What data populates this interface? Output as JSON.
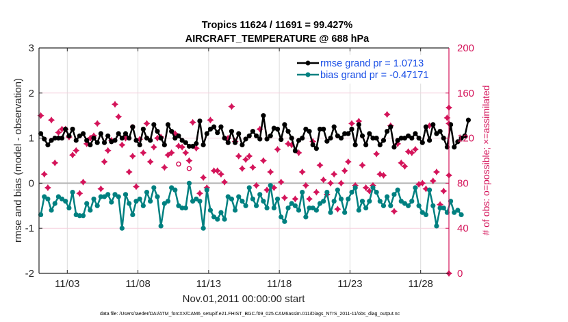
{
  "chart_data": {
    "type": "line",
    "title": [
      "Tropics 11624 / 11691 = 99.427%",
      "AIRCRAFT_TEMPERATURE @ 688 hPa"
    ],
    "xlabel": "Nov.01,2011 00:00:00 start",
    "ylabel": "rmse and bias (model - observation)",
    "ylabel_right": "# of obs: o=possible; ×=assimilated",
    "footnote": "data file: /Users/raeder/DAI/ATM_forcXX/CAM6_setup/f.e21.FHIST_BGC.f09_025.CAM6assim.011/Diags_NTrS_2011-11/obs_diag_output.nc",
    "xlim_days": [
      1,
      30
    ],
    "ylim": [
      -2,
      3
    ],
    "ylim_right": [
      0,
      200
    ],
    "x_ticks": [
      {
        "day": 3,
        "label": "11/03"
      },
      {
        "day": 8,
        "label": "11/08"
      },
      {
        "day": 13,
        "label": "11/13"
      },
      {
        "day": 18,
        "label": "11/18"
      },
      {
        "day": 23,
        "label": "11/23"
      },
      {
        "day": 28,
        "label": "11/28"
      }
    ],
    "y_ticks": [
      -2,
      -1,
      0,
      1,
      2,
      3
    ],
    "y_ticks_right": [
      0,
      40,
      80,
      120,
      160,
      200
    ],
    "grid": "vertical at x ticks; horizontal pink at left y ticks",
    "legend": {
      "placement": "top-right",
      "entries": [
        "rmse grand pr = 1.0713",
        "bias grand pr = -0.47171"
      ]
    },
    "colors": {
      "rmse": "#000000",
      "bias": "#008080",
      "obs": "#d4145a",
      "legend_text": "#1a4fe6",
      "zero_line": "#b4b4b4"
    },
    "x_start_day": 1.125,
    "x_step_days": 0.25,
    "series": [
      {
        "name": "rmse",
        "axis": "left",
        "values": [
          1.1,
          0.98,
          0.85,
          0.95,
          1.0,
          1.0,
          1.0,
          1.2,
          1.05,
          1.2,
          0.95,
          1.05,
          1.1,
          0.95,
          0.85,
          1.0,
          0.9,
          1.1,
          0.9,
          1.05,
          0.92,
          0.95,
          1.1,
          1.0,
          1.1,
          1.0,
          1.25,
          0.95,
          0.85,
          1.2,
          1.0,
          0.95,
          1.3,
          1.15,
          1.0,
          0.85,
          1.3,
          1.15,
          1.0,
          1.05,
          0.95,
          0.9,
          0.82,
          0.82,
          0.88,
          1.38,
          0.85,
          1.1,
          1.2,
          1.25,
          1.12,
          1.25,
          1.0,
          0.9,
          1.15,
          0.9,
          1.1,
          0.85,
          0.98,
          1.05,
          1.15,
          1.05,
          0.98,
          1.5,
          0.98,
          1.05,
          1.22,
          1.2,
          0.97,
          1.3,
          1.15,
          1.0,
          0.72,
          0.95,
          1.0,
          1.2,
          1.15,
          0.85,
          0.77,
          1.2,
          1.2,
          0.93,
          1.0,
          1.25,
          1.05,
          1.0,
          1.1,
          1.1,
          1.2,
          0.85,
          1.3,
          1.05,
          0.85,
          1.1,
          1.0,
          1.0,
          0.85,
          0.95,
          1.15,
          1.25,
          0.8,
          0.95,
          1.0,
          1.0,
          1.05,
          1.0,
          1.1,
          1.0,
          0.9,
          1.25,
          0.95,
          1.3,
          1.1,
          1.15,
          1.0,
          0.8,
          1.3,
          0.8,
          0.92,
          1.0,
          1.05,
          1.4
        ]
      },
      {
        "name": "bias",
        "axis": "left",
        "values": [
          -0.7,
          -0.3,
          -0.35,
          -0.6,
          -0.45,
          -0.3,
          -0.35,
          -0.4,
          -0.55,
          -0.2,
          -0.7,
          -0.72,
          -0.72,
          -0.45,
          -0.6,
          -0.35,
          -0.5,
          -0.3,
          -0.3,
          -0.25,
          -0.42,
          -0.25,
          -0.3,
          -1.0,
          -0.25,
          -0.45,
          -0.7,
          -0.4,
          -0.35,
          -0.5,
          -0.2,
          -0.4,
          -0.1,
          -0.3,
          -0.95,
          -0.45,
          -0.4,
          -0.1,
          -0.15,
          -0.5,
          -0.55,
          -0.55,
          0.0,
          -0.4,
          -0.35,
          -0.4,
          -1.0,
          -0.15,
          -0.6,
          -0.75,
          -0.8,
          -0.65,
          -0.8,
          -0.3,
          -0.35,
          -0.6,
          -0.3,
          -0.4,
          -0.5,
          -0.1,
          -0.35,
          -0.5,
          -0.25,
          -0.4,
          -0.55,
          -0.05,
          -0.55,
          -0.35,
          -0.75,
          -0.85,
          -0.55,
          -0.45,
          -0.5,
          -0.6,
          -0.2,
          -0.75,
          -0.55,
          -0.55,
          -0.6,
          -0.45,
          -0.4,
          -0.2,
          -0.65,
          -0.4,
          -0.15,
          -0.35,
          -0.65,
          -0.35,
          -0.2,
          -0.1,
          -0.6,
          -0.4,
          -0.55,
          -0.4,
          -0.1,
          -0.2,
          -0.4,
          -0.5,
          -0.3,
          -0.5,
          -0.25,
          -0.15,
          -0.4,
          -0.45,
          -0.5,
          -0.4,
          -0.1,
          -0.5,
          -0.65,
          -0.7,
          -0.15,
          -0.5,
          -0.95,
          -0.55,
          -0.55,
          -0.65,
          -0.4,
          -0.65,
          -0.6,
          -0.7
        ]
      },
      {
        "name": "obs_assimilated",
        "axis": "right",
        "marker": "star",
        "values": [
          140,
          88,
          76,
          136,
          98,
          125,
          128,
          128,
          121,
          105,
          109,
          71,
          81,
          115,
          120,
          122,
          133,
          75,
          99,
          109,
          118,
          150,
          139,
          114,
          120,
          90,
          104,
          77,
          119,
          107,
          133,
          99,
          112,
          120,
          121,
          94,
          105,
          107,
          124,
          113,
          112,
          107,
          100,
          134,
          111,
          71,
          85,
          76,
          136,
          91,
          91,
          88,
          81,
          120,
          148,
          117,
          104,
          93,
          101,
          104,
          94,
          78,
          128,
          100,
          74,
          90,
          76,
          110,
          81,
          67,
          115,
          114,
          66,
          107,
          90,
          78,
          66,
          117,
          72,
          96,
          83,
          70,
          80,
          88,
          57,
          80,
          91,
          99,
          133,
          78,
          135,
          96,
          76,
          73,
          78,
          106,
          88,
          87,
          141,
          131,
          55,
          115,
          98,
          95,
          108,
          107,
          110,
          79,
          80,
          75,
          131,
          82,
          90,
          61,
          73,
          138,
          133,
          87,
          147,
          0
        ]
      },
      {
        "name": "obs_possible",
        "axis": "right",
        "marker": "circle",
        "values": [
          null,
          null,
          null,
          null,
          null,
          null,
          null,
          null,
          null,
          null,
          null,
          null,
          null,
          null,
          null,
          null,
          null,
          null,
          null,
          null,
          null,
          null,
          null,
          null,
          null,
          null,
          130,
          null,
          null,
          null,
          null,
          null,
          null,
          null,
          null,
          null,
          null,
          null,
          null,
          97,
          null,
          null,
          93,
          null,
          null,
          null,
          null,
          null,
          null,
          null,
          null,
          null,
          null,
          null,
          null,
          null,
          null,
          null,
          null,
          null,
          null,
          null,
          null,
          null,
          null,
          null,
          null,
          null,
          null,
          null,
          null,
          null,
          null,
          null,
          null,
          null,
          null,
          null,
          null,
          null,
          null,
          null,
          null,
          null,
          null,
          null,
          null,
          null,
          null,
          null,
          null,
          null,
          null,
          null,
          null,
          null,
          null,
          null,
          null,
          null,
          null,
          null,
          null,
          null,
          null,
          null,
          null,
          null,
          null,
          null,
          null,
          null,
          null,
          null,
          null,
          null,
          null,
          null,
          null,
          null
        ]
      }
    ]
  }
}
